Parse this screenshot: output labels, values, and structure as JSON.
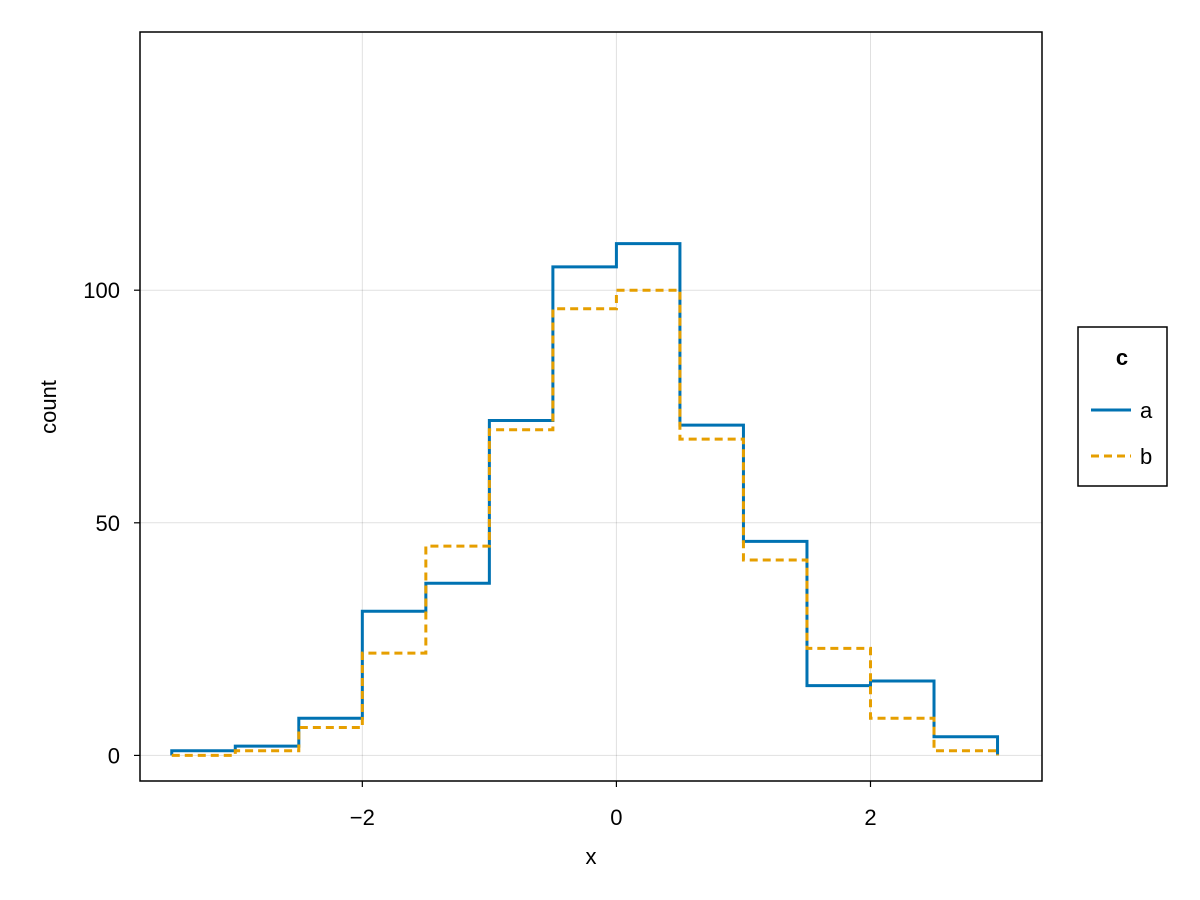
{
  "chart_data": {
    "type": "step",
    "title": "",
    "xlabel": "x",
    "ylabel": "count",
    "xlim": [
      -3.75,
      3.35
    ],
    "ylim": [
      -5.5,
      155.5
    ],
    "xticks": [
      -2,
      0,
      2
    ],
    "yticks": [
      0,
      50,
      100
    ],
    "xtick_labels": [
      "−2",
      "0",
      "2"
    ],
    "ytick_labels": [
      "0",
      "50",
      "100"
    ],
    "grid": true,
    "bin_edges": [
      -3.5,
      -3.0,
      -2.5,
      -2.0,
      -1.5,
      -1.0,
      -0.5,
      0.0,
      0.5,
      1.0,
      1.5,
      2.0,
      2.5,
      3.0
    ],
    "legend": {
      "title": "c",
      "position": "right"
    },
    "series": [
      {
        "name": "a",
        "color": "#0072B2",
        "style": "solid",
        "values": [
          1,
          2,
          8,
          31,
          37,
          72,
          105,
          110,
          71,
          46,
          15,
          16,
          4
        ]
      },
      {
        "name": "b",
        "color": "#E69F00",
        "style": "dashed",
        "values": [
          0,
          1,
          6,
          22,
          45,
          70,
          96,
          100,
          68,
          42,
          23,
          8,
          1
        ]
      }
    ]
  }
}
